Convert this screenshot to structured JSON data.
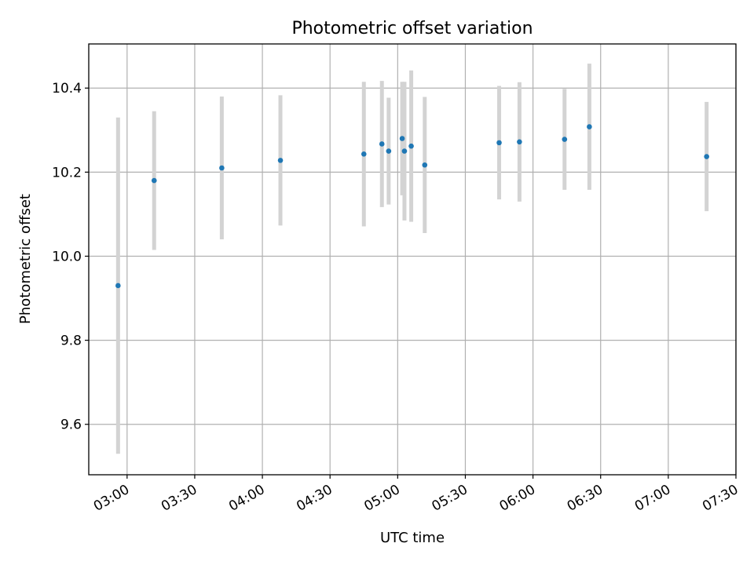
{
  "chart_data": {
    "type": "scatter",
    "title": "Photometric offset variation",
    "xlabel": "UTC time",
    "ylabel": "Photometric offset",
    "grid": true,
    "xlim": [
      "02:43",
      "07:30"
    ],
    "ylim": [
      9.48,
      10.505
    ],
    "x_ticks": [
      "03:00",
      "03:30",
      "04:00",
      "04:30",
      "05:00",
      "05:30",
      "06:00",
      "06:30",
      "07:00",
      "07:30"
    ],
    "y_ticks": [
      9.6,
      9.8,
      10.0,
      10.2,
      10.4
    ],
    "y_tick_labels": [
      "9.6",
      "9.8",
      "10.0",
      "10.2",
      "10.4"
    ],
    "colors": {
      "points": "#1f77b4",
      "errorbars": "#d3d3d3",
      "grid": "#b0b0b0"
    },
    "points": [
      {
        "x": "02:56",
        "y": 9.93,
        "err": 0.4
      },
      {
        "x": "03:12",
        "y": 10.18,
        "err": 0.165
      },
      {
        "x": "03:42",
        "y": 10.21,
        "err": 0.17
      },
      {
        "x": "04:08",
        "y": 10.228,
        "err": 0.155
      },
      {
        "x": "04:45",
        "y": 10.243,
        "err": 0.172
      },
      {
        "x": "04:53",
        "y": 10.267,
        "err": 0.15
      },
      {
        "x": "04:56",
        "y": 10.25,
        "err": 0.127
      },
      {
        "x": "05:02",
        "y": 10.28,
        "err": 0.135
      },
      {
        "x": "05:03",
        "y": 10.25,
        "err": 0.165
      },
      {
        "x": "05:06",
        "y": 10.262,
        "err": 0.18
      },
      {
        "x": "05:12",
        "y": 10.217,
        "err": 0.162
      },
      {
        "x": "05:45",
        "y": 10.27,
        "err": 0.135
      },
      {
        "x": "05:54",
        "y": 10.272,
        "err": 0.142
      },
      {
        "x": "06:14",
        "y": 10.278,
        "err": 0.12
      },
      {
        "x": "06:25",
        "y": 10.308,
        "err": 0.15
      },
      {
        "x": "07:17",
        "y": 10.237,
        "err": 0.13
      }
    ]
  }
}
